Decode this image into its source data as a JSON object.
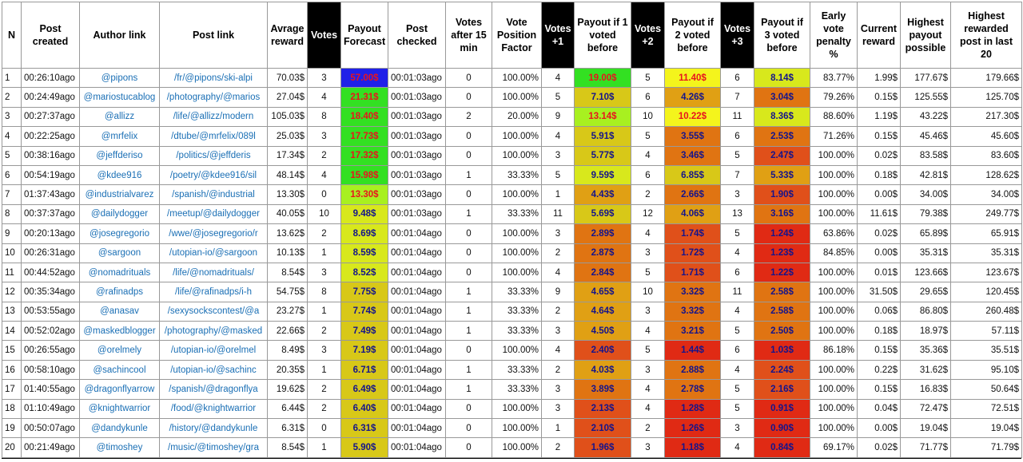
{
  "table": {
    "headers": [
      "N",
      "Post created",
      "Author link",
      "Post link",
      "Avrage reward",
      "Votes",
      "Payout Forecast",
      "Post checked",
      "Votes after 15 min",
      "Vote Position Factor",
      "Votes +1",
      "Payout if 1 voted before",
      "Votes +2",
      "Payout if 2 voted before",
      "Votes +3",
      "Payout if 3 voted before",
      "Early vote penalty %",
      "Current reward",
      "Highest payout possible",
      "Highest rewarded post in last 20"
    ],
    "rows": [
      [
        "1",
        "00:26:10ago",
        "@pipons",
        "/fr/@pipons/ski-alpi",
        "70.03$",
        "3",
        "57.00$",
        "00:01:03ago",
        "0",
        "100.00%",
        "4",
        "19.00$",
        "5",
        "11.40$",
        "6",
        "8.14$",
        "83.77%",
        "1.99$",
        "177.67$",
        "179.66$"
      ],
      [
        "2",
        "00:24:49ago",
        "@mariostucablog",
        "/photography/@marios",
        "27.04$",
        "4",
        "21.31$",
        "00:01:03ago",
        "0",
        "100.00%",
        "5",
        "7.10$",
        "6",
        "4.26$",
        "7",
        "3.04$",
        "79.26%",
        "0.15$",
        "125.55$",
        "125.70$"
      ],
      [
        "3",
        "00:27:37ago",
        "@allizz",
        "/life/@allizz/modern",
        "105.03$",
        "8",
        "18.40$",
        "00:01:03ago",
        "2",
        "20.00%",
        "9",
        "13.14$",
        "10",
        "10.22$",
        "11",
        "8.36$",
        "88.60%",
        "1.19$",
        "43.22$",
        "217.30$"
      ],
      [
        "4",
        "00:22:25ago",
        "@mrfelix",
        "/dtube/@mrfelix/089l",
        "25.03$",
        "3",
        "17.73$",
        "00:01:03ago",
        "0",
        "100.00%",
        "4",
        "5.91$",
        "5",
        "3.55$",
        "6",
        "2.53$",
        "71.26%",
        "0.15$",
        "45.46$",
        "45.60$"
      ],
      [
        "5",
        "00:38:16ago",
        "@jeffderiso",
        "/politics/@jeffderis",
        "17.34$",
        "2",
        "17.32$",
        "00:01:03ago",
        "0",
        "100.00%",
        "3",
        "5.77$",
        "4",
        "3.46$",
        "5",
        "2.47$",
        "100.00%",
        "0.02$",
        "83.58$",
        "83.60$"
      ],
      [
        "6",
        "00:54:19ago",
        "@kdee916",
        "/poetry/@kdee916/sil",
        "48.14$",
        "4",
        "15.98$",
        "00:01:03ago",
        "1",
        "33.33%",
        "5",
        "9.59$",
        "6",
        "6.85$",
        "7",
        "5.33$",
        "100.00%",
        "0.18$",
        "42.81$",
        "128.62$"
      ],
      [
        "7",
        "01:37:43ago",
        "@industrialvarez",
        "/spanish/@industrial",
        "13.30$",
        "0",
        "13.30$",
        "00:01:03ago",
        "0",
        "100.00%",
        "1",
        "4.43$",
        "2",
        "2.66$",
        "3",
        "1.90$",
        "100.00%",
        "0.00$",
        "34.00$",
        "34.00$"
      ],
      [
        "8",
        "00:37:37ago",
        "@dailydogger",
        "/meetup/@dailydogger",
        "40.05$",
        "10",
        "9.48$",
        "00:01:03ago",
        "1",
        "33.33%",
        "11",
        "5.69$",
        "12",
        "4.06$",
        "13",
        "3.16$",
        "100.00%",
        "11.61$",
        "79.38$",
        "249.77$"
      ],
      [
        "9",
        "00:20:13ago",
        "@josegregorio",
        "/wwe/@josegregorio/r",
        "13.62$",
        "2",
        "8.69$",
        "00:01:04ago",
        "0",
        "100.00%",
        "3",
        "2.89$",
        "4",
        "1.74$",
        "5",
        "1.24$",
        "63.86%",
        "0.02$",
        "65.89$",
        "65.91$"
      ],
      [
        "10",
        "00:26:31ago",
        "@sargoon",
        "/utopian-io/@sargoon",
        "10.13$",
        "1",
        "8.59$",
        "00:01:04ago",
        "0",
        "100.00%",
        "2",
        "2.87$",
        "3",
        "1.72$",
        "4",
        "1.23$",
        "84.85%",
        "0.00$",
        "35.31$",
        "35.31$"
      ],
      [
        "11",
        "00:44:52ago",
        "@nomadrituals",
        "/life/@nomadrituals/",
        "8.54$",
        "3",
        "8.52$",
        "00:01:04ago",
        "0",
        "100.00%",
        "4",
        "2.84$",
        "5",
        "1.71$",
        "6",
        "1.22$",
        "100.00%",
        "0.01$",
        "123.66$",
        "123.67$"
      ],
      [
        "12",
        "00:35:34ago",
        "@rafinadps",
        "/life/@rafinadps/i-h",
        "54.75$",
        "8",
        "7.75$",
        "00:01:04ago",
        "1",
        "33.33%",
        "9",
        "4.65$",
        "10",
        "3.32$",
        "11",
        "2.58$",
        "100.00%",
        "31.50$",
        "29.65$",
        "120.45$"
      ],
      [
        "13",
        "00:53:55ago",
        "@anasav",
        "/sexysockscontest/@a",
        "23.27$",
        "1",
        "7.74$",
        "00:01:04ago",
        "1",
        "33.33%",
        "2",
        "4.64$",
        "3",
        "3.32$",
        "4",
        "2.58$",
        "100.00%",
        "0.06$",
        "86.80$",
        "260.48$"
      ],
      [
        "14",
        "00:52:02ago",
        "@maskedblogger",
        "/photography/@masked",
        "22.66$",
        "2",
        "7.49$",
        "00:01:04ago",
        "1",
        "33.33%",
        "3",
        "4.50$",
        "4",
        "3.21$",
        "5",
        "2.50$",
        "100.00%",
        "0.18$",
        "18.97$",
        "57.11$"
      ],
      [
        "15",
        "00:26:55ago",
        "@orelmely",
        "/utopian-io/@orelmel",
        "8.49$",
        "3",
        "7.19$",
        "00:01:04ago",
        "0",
        "100.00%",
        "4",
        "2.40$",
        "5",
        "1.44$",
        "6",
        "1.03$",
        "86.18%",
        "0.15$",
        "35.36$",
        "35.51$"
      ],
      [
        "16",
        "00:58:10ago",
        "@sachincool",
        "/utopian-io/@sachinc",
        "20.35$",
        "1",
        "6.71$",
        "00:01:04ago",
        "1",
        "33.33%",
        "2",
        "4.03$",
        "3",
        "2.88$",
        "4",
        "2.24$",
        "100.00%",
        "0.22$",
        "31.62$",
        "95.10$"
      ],
      [
        "17",
        "01:40:55ago",
        "@dragonflyarrow",
        "/spanish/@dragonflya",
        "19.62$",
        "2",
        "6.49$",
        "00:01:04ago",
        "1",
        "33.33%",
        "3",
        "3.89$",
        "4",
        "2.78$",
        "5",
        "2.16$",
        "100.00%",
        "0.15$",
        "16.83$",
        "50.64$"
      ],
      [
        "18",
        "01:10:49ago",
        "@knightwarrior",
        "/food/@knightwarrior",
        "6.44$",
        "2",
        "6.40$",
        "00:01:04ago",
        "0",
        "100.00%",
        "3",
        "2.13$",
        "4",
        "1.28$",
        "5",
        "0.91$",
        "100.00%",
        "0.04$",
        "72.47$",
        "72.51$"
      ],
      [
        "19",
        "00:50:07ago",
        "@dandykunle",
        "/history/@dandykunle",
        "6.31$",
        "0",
        "6.31$",
        "00:01:04ago",
        "0",
        "100.00%",
        "1",
        "2.10$",
        "2",
        "1.26$",
        "3",
        "0.90$",
        "100.00%",
        "0.00$",
        "19.04$",
        "19.04$"
      ],
      [
        "20",
        "00:21:49ago",
        "@timoshey",
        "/music/@timoshey/gra",
        "8.54$",
        "1",
        "5.90$",
        "00:01:04ago",
        "0",
        "100.00%",
        "2",
        "1.96$",
        "3",
        "1.18$",
        "4",
        "0.84$",
        "69.17%",
        "0.02$",
        "71.77$",
        "71.79$"
      ]
    ]
  }
}
